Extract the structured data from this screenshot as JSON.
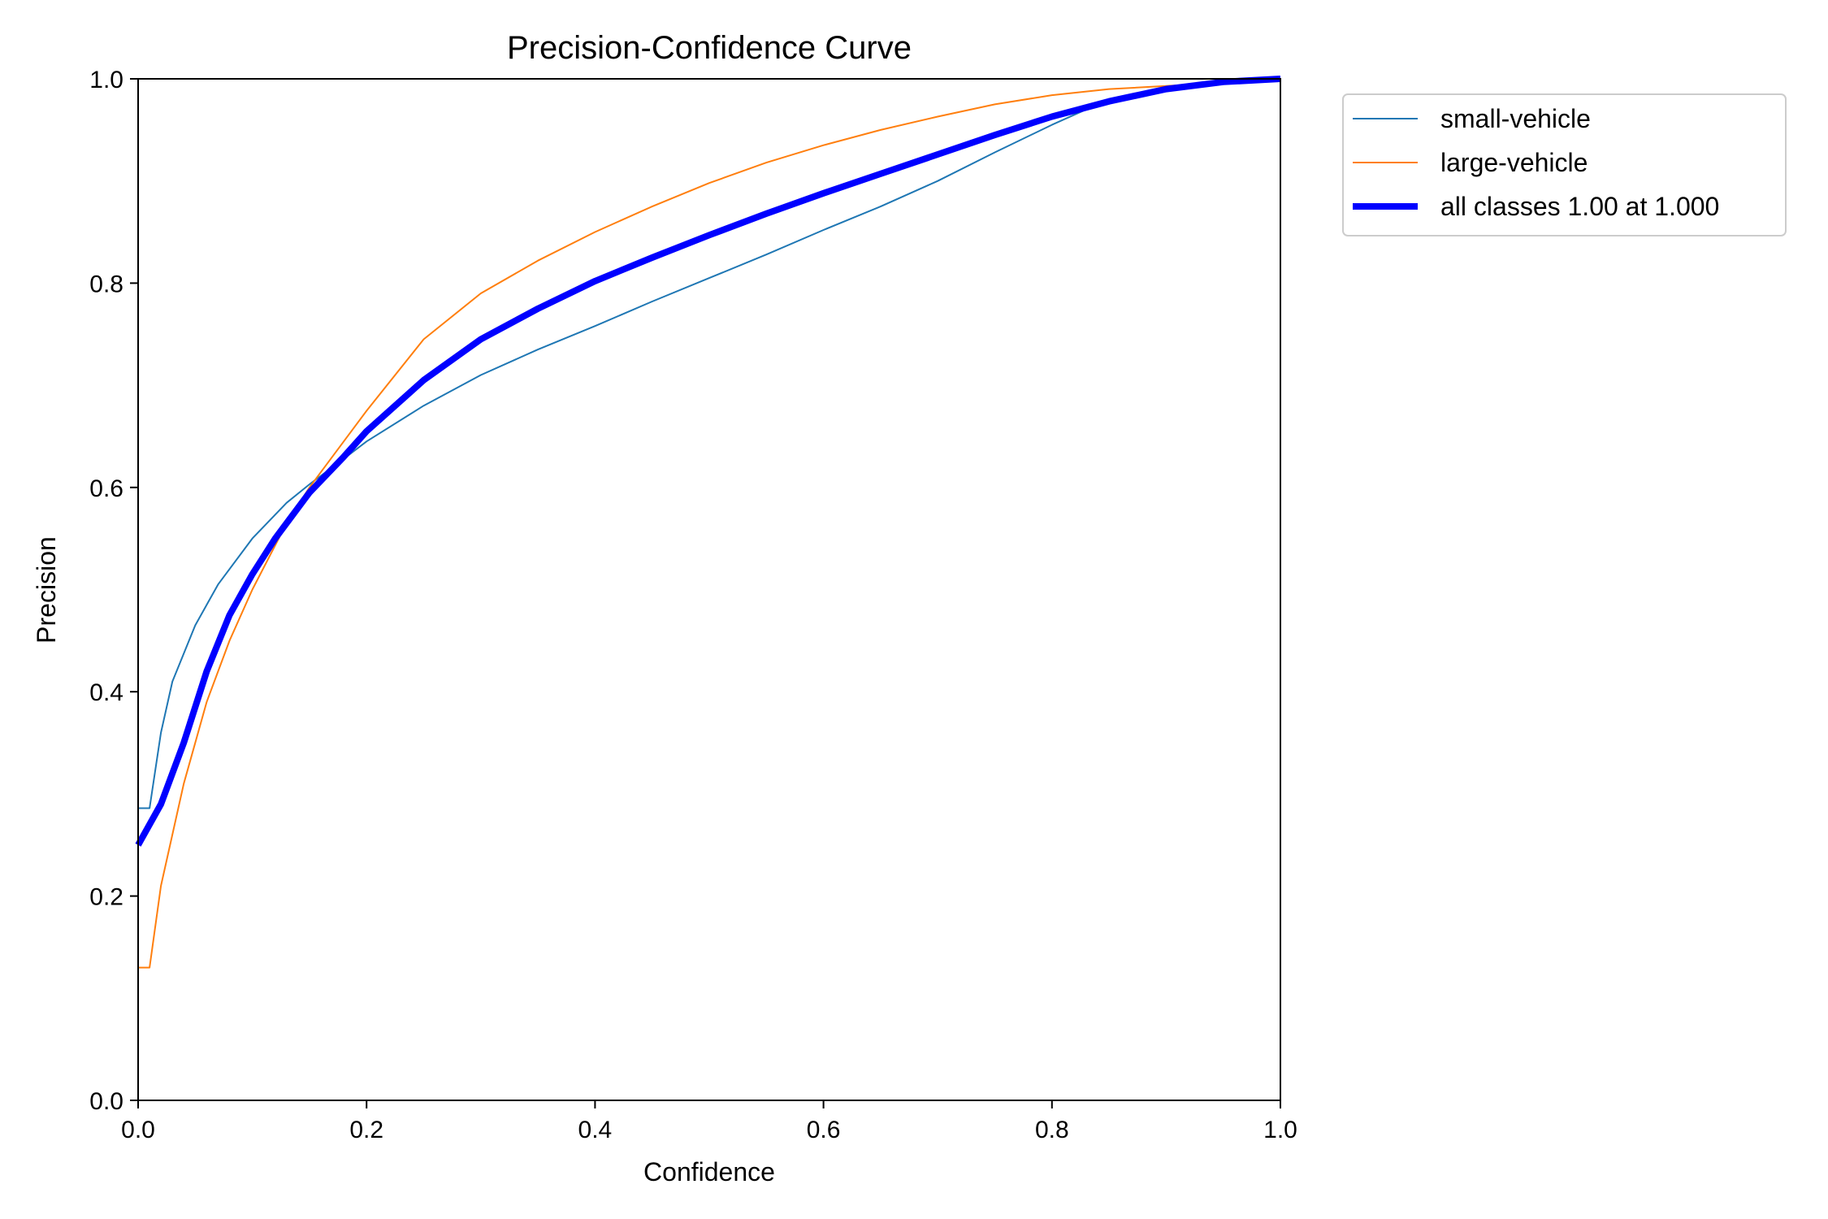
{
  "chart_data": {
    "type": "line",
    "title": "Precision-Confidence Curve",
    "xlabel": "Confidence",
    "ylabel": "Precision",
    "xlim": [
      0.0,
      1.0
    ],
    "ylim": [
      0.0,
      1.0
    ],
    "xticks": [
      0.0,
      0.2,
      0.4,
      0.6,
      0.8,
      1.0
    ],
    "yticks": [
      0.0,
      0.2,
      0.4,
      0.6,
      0.8,
      1.0
    ],
    "xtick_labels": [
      "0.0",
      "0.2",
      "0.4",
      "0.6",
      "0.8",
      "1.0"
    ],
    "ytick_labels": [
      "0.0",
      "0.2",
      "0.4",
      "0.6",
      "0.8",
      "1.0"
    ],
    "grid": false,
    "legend_position": "outside-top-right",
    "series": [
      {
        "name": "small-vehicle",
        "color": "#1f77b4",
        "width": 2,
        "x": [
          0.0,
          0.01,
          0.02,
          0.03,
          0.05,
          0.07,
          0.1,
          0.13,
          0.15,
          0.18,
          0.2,
          0.25,
          0.3,
          0.35,
          0.4,
          0.45,
          0.5,
          0.55,
          0.6,
          0.65,
          0.7,
          0.75,
          0.8,
          0.85,
          0.9,
          0.95,
          1.0
        ],
        "y": [
          0.286,
          0.286,
          0.36,
          0.41,
          0.465,
          0.505,
          0.55,
          0.585,
          0.603,
          0.628,
          0.645,
          0.68,
          0.71,
          0.735,
          0.758,
          0.782,
          0.805,
          0.828,
          0.852,
          0.875,
          0.9,
          0.928,
          0.955,
          0.98,
          0.99,
          0.995,
          1.0
        ]
      },
      {
        "name": "large-vehicle",
        "color": "#ff7f0e",
        "width": 2,
        "x": [
          0.0,
          0.01,
          0.02,
          0.04,
          0.06,
          0.08,
          0.1,
          0.13,
          0.15,
          0.18,
          0.2,
          0.25,
          0.3,
          0.35,
          0.4,
          0.45,
          0.5,
          0.55,
          0.6,
          0.65,
          0.7,
          0.75,
          0.8,
          0.85,
          0.9,
          0.95,
          1.0
        ],
        "y": [
          0.13,
          0.13,
          0.21,
          0.31,
          0.39,
          0.45,
          0.5,
          0.565,
          0.6,
          0.645,
          0.675,
          0.745,
          0.79,
          0.822,
          0.85,
          0.875,
          0.898,
          0.918,
          0.935,
          0.95,
          0.963,
          0.975,
          0.984,
          0.99,
          0.993,
          0.996,
          1.0
        ]
      },
      {
        "name": "all classes 1.00 at 1.000",
        "color": "#0000ff",
        "width": 8,
        "x": [
          0.0,
          0.02,
          0.04,
          0.06,
          0.08,
          0.1,
          0.12,
          0.15,
          0.18,
          0.2,
          0.25,
          0.3,
          0.35,
          0.4,
          0.45,
          0.5,
          0.55,
          0.6,
          0.65,
          0.7,
          0.75,
          0.8,
          0.85,
          0.9,
          0.95,
          1.0
        ],
        "y": [
          0.25,
          0.29,
          0.35,
          0.42,
          0.475,
          0.515,
          0.55,
          0.595,
          0.63,
          0.655,
          0.705,
          0.745,
          0.775,
          0.802,
          0.825,
          0.847,
          0.868,
          0.888,
          0.907,
          0.926,
          0.945,
          0.963,
          0.978,
          0.99,
          0.997,
          1.0
        ]
      }
    ]
  }
}
